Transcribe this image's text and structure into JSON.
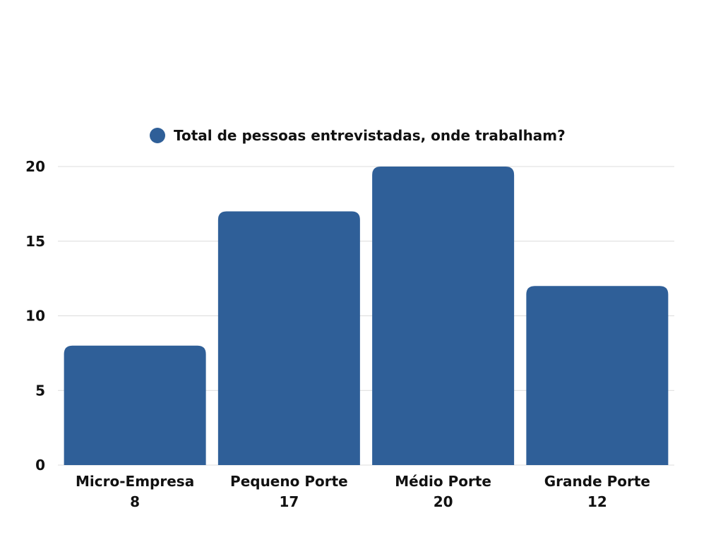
{
  "chart_data": {
    "type": "bar",
    "title": "",
    "xlabel": "",
    "ylabel": "",
    "ylim": [
      0,
      20
    ],
    "y_ticks": [
      "0",
      "5",
      "10",
      "15",
      "20"
    ],
    "categories": [
      "Micro-Empresa",
      "Pequeno Porte",
      "Médio Porte",
      "Grande Porte"
    ],
    "data_labels": [
      "8",
      "17",
      "20",
      "12"
    ],
    "series": [
      {
        "name": "Total de pessoas entrevistadas, onde trabalham?",
        "values": [
          8,
          17,
          20,
          12
        ],
        "color": "#2f5f98"
      }
    ],
    "grid": true,
    "legend_position": "top"
  }
}
